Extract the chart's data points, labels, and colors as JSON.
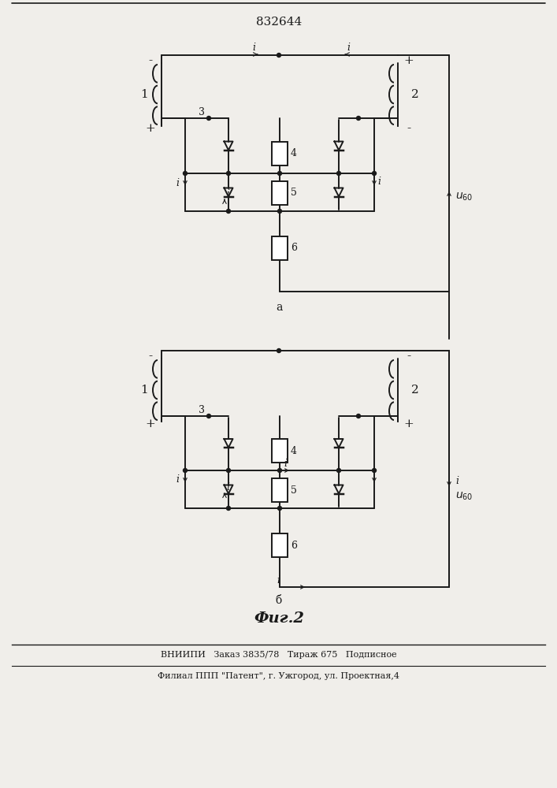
{
  "title": "832644",
  "fig_label_a": "a",
  "fig_label_b": "б",
  "fig_caption": "Фиг.2",
  "bottom_line1": "ВНИИПИ   Заказ 3835/78   Тираж 675   Подписное",
  "bottom_line2": "Филиал ППП \"Патент\", г. Ужгород, ул. Проектная,4",
  "line_color": "#1a1a1a",
  "bg_color": "#f0eeea"
}
